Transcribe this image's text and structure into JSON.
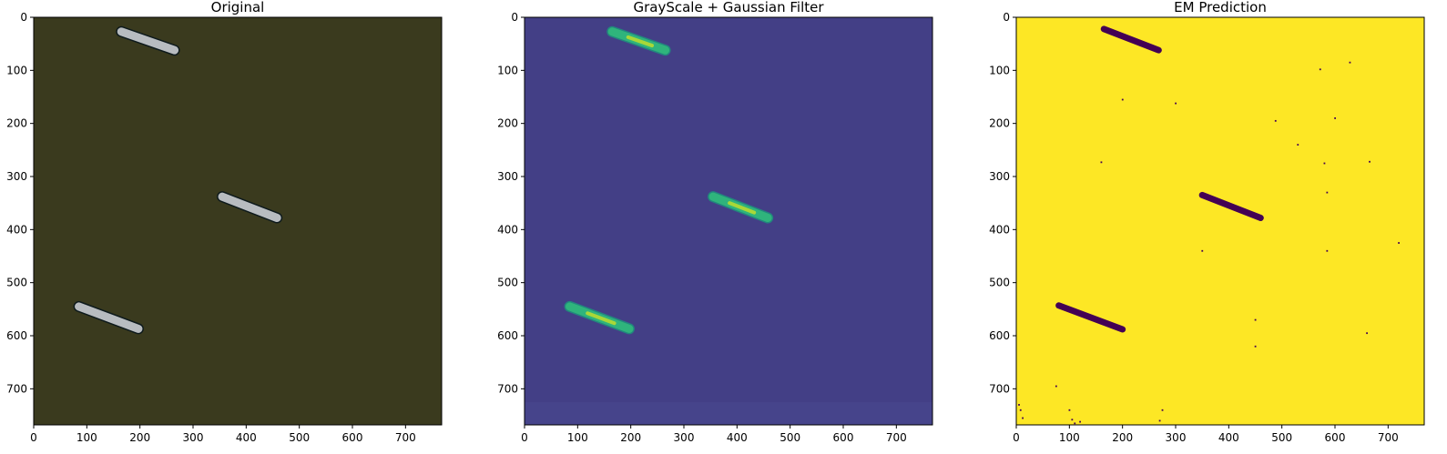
{
  "chart_data": [
    {
      "type": "image",
      "title": "Original",
      "colors": {
        "background": "#3a3a1e",
        "object": "#b8bcc0",
        "object_outline": "#0e1a1c"
      },
      "xlim": [
        0,
        768
      ],
      "ylim": [
        768,
        0
      ],
      "xticks": [
        0,
        100,
        200,
        300,
        400,
        500,
        600,
        700
      ],
      "yticks": [
        0,
        100,
        200,
        300,
        400,
        500,
        600,
        700
      ],
      "objects": [
        {
          "x1": 165,
          "y1": 27,
          "x2": 265,
          "y2": 62
        },
        {
          "x1": 355,
          "y1": 338,
          "x2": 458,
          "y2": 378
        },
        {
          "x1": 85,
          "y1": 545,
          "x2": 197,
          "y2": 587
        }
      ]
    },
    {
      "type": "image",
      "title": "GrayScale + Gaussian Filter",
      "colors": {
        "background": "#433f86",
        "object": "#2fb47c",
        "object_highlight": "#c8e028",
        "object_outline": "#22877e"
      },
      "xlim": [
        0,
        768
      ],
      "ylim": [
        768,
        0
      ],
      "xticks": [
        0,
        100,
        200,
        300,
        400,
        500,
        600,
        700
      ],
      "yticks": [
        0,
        100,
        200,
        300,
        400,
        500,
        600,
        700
      ],
      "objects": [
        {
          "x1": 165,
          "y1": 27,
          "x2": 265,
          "y2": 62
        },
        {
          "x1": 355,
          "y1": 338,
          "x2": 458,
          "y2": 378
        },
        {
          "x1": 85,
          "y1": 545,
          "x2": 197,
          "y2": 587
        }
      ]
    },
    {
      "type": "image",
      "title": "EM Prediction",
      "colors": {
        "background": "#fde725",
        "object": "#440154"
      },
      "xlim": [
        0,
        768
      ],
      "ylim": [
        768,
        0
      ],
      "xticks": [
        0,
        100,
        200,
        300,
        400,
        500,
        600,
        700
      ],
      "yticks": [
        0,
        100,
        200,
        300,
        400,
        500,
        600,
        700
      ],
      "objects": [
        {
          "x1": 165,
          "y1": 22,
          "x2": 268,
          "y2": 62
        },
        {
          "x1": 350,
          "y1": 335,
          "x2": 460,
          "y2": 378
        },
        {
          "x1": 80,
          "y1": 543,
          "x2": 200,
          "y2": 588
        }
      ],
      "specks": [
        [
          572,
          98
        ],
        [
          628,
          85
        ],
        [
          200,
          155
        ],
        [
          300,
          162
        ],
        [
          488,
          195
        ],
        [
          600,
          190
        ],
        [
          530,
          240
        ],
        [
          580,
          275
        ],
        [
          160,
          273
        ],
        [
          665,
          272
        ],
        [
          585,
          330
        ],
        [
          350,
          440
        ],
        [
          585,
          440
        ],
        [
          720,
          425
        ],
        [
          450,
          570
        ],
        [
          660,
          595
        ],
        [
          450,
          620
        ],
        [
          75,
          695
        ],
        [
          5,
          730
        ],
        [
          8,
          740
        ],
        [
          12,
          755
        ],
        [
          100,
          740
        ],
        [
          105,
          758
        ],
        [
          120,
          762
        ],
        [
          275,
          740
        ],
        [
          270,
          760
        ],
        [
          110,
          765
        ]
      ]
    }
  ]
}
